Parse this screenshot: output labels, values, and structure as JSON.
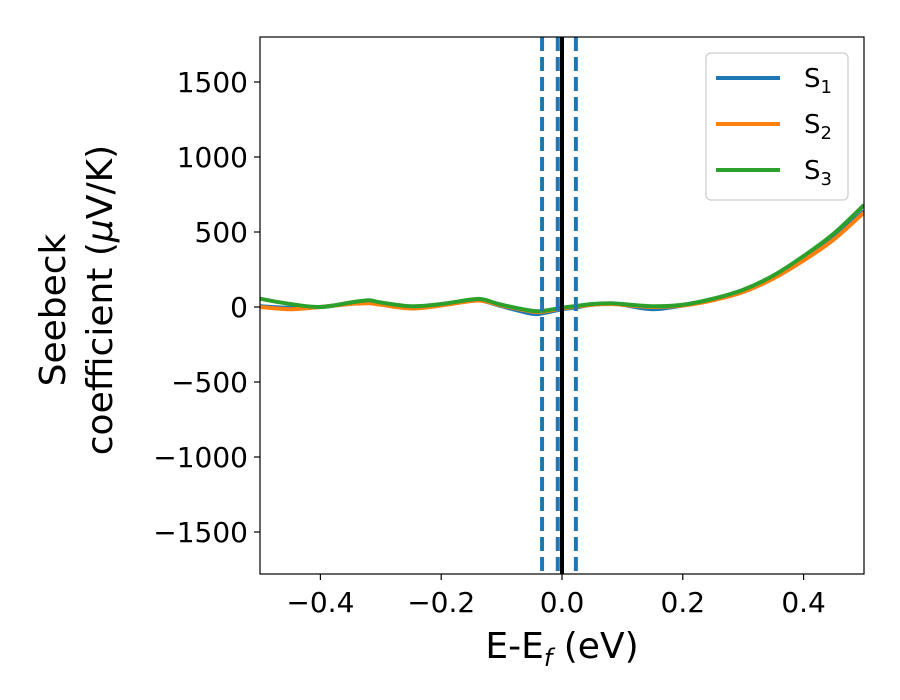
{
  "chart_data": {
    "type": "line",
    "xlabel": "E-E",
    "xlabel_sub": "f",
    "xlabel_unit": " (eV)",
    "ylabel_line1": "Seebeck",
    "ylabel_line2": "coefficient  (",
    "ylabel_mu": "μ",
    "ylabel_unit": "V/K)",
    "xlim": [
      -0.5,
      0.5
    ],
    "ylim": [
      -1780,
      1800
    ],
    "xticks": [
      -0.4,
      -0.2,
      0.0,
      0.2,
      0.4
    ],
    "xtick_labels": [
      "−0.4",
      "−0.2",
      "0.0",
      "0.2",
      "0.4"
    ],
    "yticks": [
      -1500,
      -1000,
      -500,
      0,
      500,
      1000,
      1500
    ],
    "ytick_labels": [
      "−1500",
      "−1000",
      "−500",
      "0",
      "500",
      "1000",
      "1500"
    ],
    "grid": false,
    "legend_position": "top-right",
    "x": [
      -0.5,
      -0.45,
      -0.4,
      -0.35,
      -0.32,
      -0.3,
      -0.25,
      -0.2,
      -0.15,
      -0.13,
      -0.1,
      -0.05,
      -0.03,
      0.0,
      0.02,
      0.05,
      0.08,
      0.1,
      0.15,
      0.2,
      0.25,
      0.3,
      0.35,
      0.4,
      0.45,
      0.5
    ],
    "series": [
      {
        "name": "S",
        "subscript": "1",
        "color": "#1f77b4",
        "values": [
          5,
          -5,
          0,
          25,
          35,
          20,
          -5,
          15,
          45,
          40,
          5,
          -45,
          -40,
          -15,
          -5,
          15,
          20,
          15,
          -15,
          10,
          50,
          110,
          200,
          320,
          460,
          640
        ]
      },
      {
        "name": "S",
        "subscript": "2",
        "color": "#ff7f0e",
        "values": [
          0,
          -15,
          0,
          20,
          25,
          15,
          -10,
          10,
          40,
          40,
          10,
          -30,
          -30,
          -10,
          0,
          15,
          20,
          15,
          0,
          10,
          45,
          100,
          190,
          310,
          450,
          630
        ]
      },
      {
        "name": "S",
        "subscript": "3",
        "color": "#2ca02c",
        "values": [
          55,
          20,
          0,
          30,
          45,
          30,
          5,
          20,
          50,
          50,
          15,
          -25,
          -25,
          -5,
          5,
          20,
          25,
          20,
          5,
          15,
          55,
          115,
          210,
          340,
          490,
          680
        ]
      }
    ],
    "vlines": [
      {
        "x": -0.033,
        "style": "dashed",
        "color": "#1f77b4"
      },
      {
        "x": -0.007,
        "style": "dashed",
        "color": "#1f77b4"
      },
      {
        "x": 0.0,
        "style": "solid",
        "color": "#000000"
      },
      {
        "x": 0.023,
        "style": "dashed",
        "color": "#1f77b4"
      }
    ]
  }
}
